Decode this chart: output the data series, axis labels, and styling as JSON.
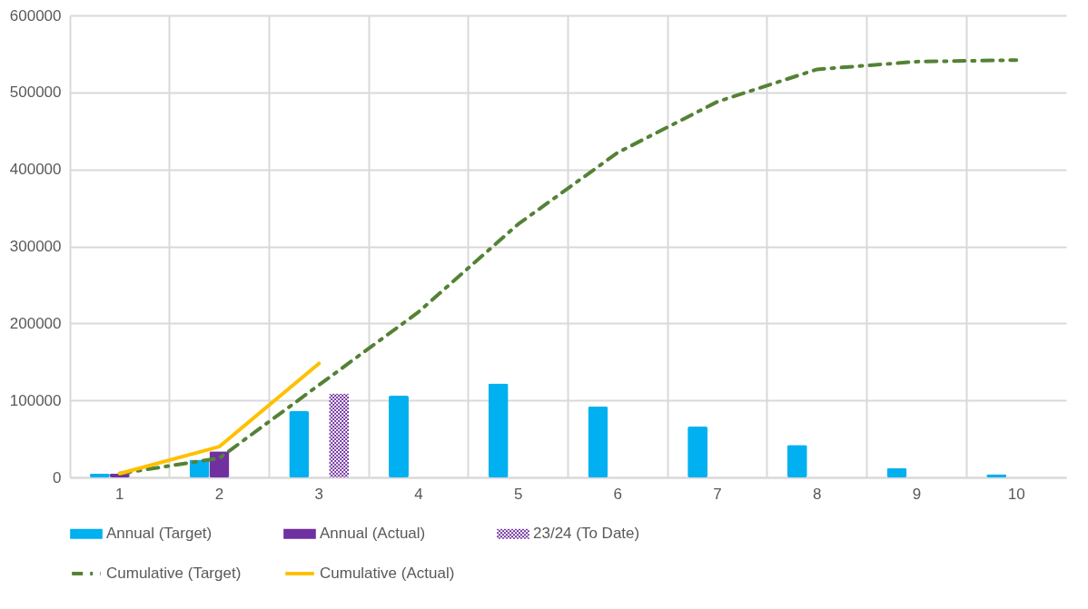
{
  "chart_data": {
    "type": "bar",
    "categories": [
      "1",
      "2",
      "3",
      "4",
      "5",
      "6",
      "7",
      "8",
      "9",
      "10"
    ],
    "ylim": [
      0,
      600000
    ],
    "yticks": [
      0,
      100000,
      200000,
      300000,
      400000,
      500000,
      600000
    ],
    "grid": true,
    "legend": "bottom",
    "series": [
      {
        "name": "Annual (Target)",
        "color": "#00b0f0",
        "values": [
          5000,
          23000,
          86000,
          106000,
          122000,
          92000,
          66000,
          42000,
          12000,
          4000
        ]
      },
      {
        "name": "Annual (Actual)",
        "color": "#7030a0",
        "values": [
          5000,
          34000,
          null,
          null,
          null,
          null,
          null,
          null,
          null,
          null
        ]
      },
      {
        "name": "23/24 (To Date)",
        "color": "#7030a0",
        "values": [
          null,
          null,
          109000,
          null,
          null,
          null,
          null,
          null,
          null,
          null
        ]
      },
      {
        "name": "Cumulative (Target)",
        "type": "line",
        "color": "#548235",
        "line_style": "dashed",
        "values": [
          5000,
          25000,
          120000,
          215000,
          329000,
          422000,
          488000,
          530000,
          540000,
          542000
        ]
      },
      {
        "name": "Cumulative (Actual)",
        "type": "line",
        "color": "#ffc000",
        "line_style": "solid",
        "values": [
          5000,
          40000,
          148000,
          null,
          null,
          null,
          null,
          null,
          null,
          null
        ]
      }
    ]
  }
}
